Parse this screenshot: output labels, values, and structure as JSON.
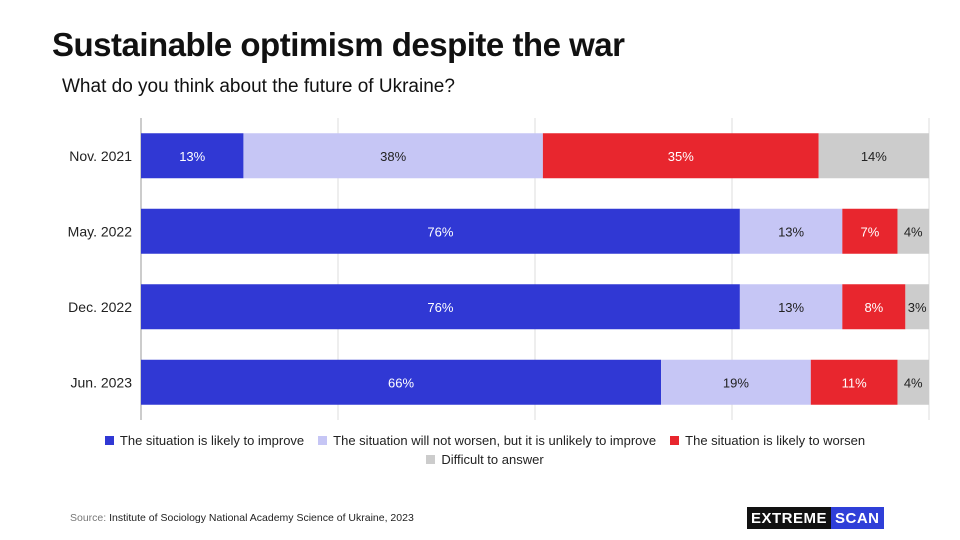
{
  "title": "Sustainable optimism despite the war",
  "subtitle": "What do you think about the future of Ukraine?",
  "source_label": "Source:",
  "source_text": "Institute of Sociology National Academy Science of Ukraine, 2023",
  "logo": {
    "part1": "EXTREME",
    "part2": "SCAN"
  },
  "chart_data": {
    "type": "bar",
    "orientation": "horizontal",
    "stacked": true,
    "categories": [
      "Nov. 2021",
      "May. 2022",
      "Dec. 2022",
      "Jun. 2023"
    ],
    "series": [
      {
        "name": "The situation is likely to improve",
        "color": "#3038d4",
        "values": [
          13,
          76,
          76,
          66
        ]
      },
      {
        "name": "The situation will not worsen, but it is unlikely to improve",
        "color": "#c6c6f5",
        "values": [
          38,
          13,
          13,
          19
        ]
      },
      {
        "name": "The situation is likely to worsen",
        "color": "#e8262e",
        "values": [
          35,
          7,
          8,
          11
        ]
      },
      {
        "name": "Difficult to answer",
        "color": "#cccccc",
        "values": [
          14,
          4,
          3,
          4
        ]
      }
    ],
    "value_suffix": "%",
    "xlim": [
      0,
      100
    ],
    "grid": true,
    "legend_position": "bottom"
  }
}
